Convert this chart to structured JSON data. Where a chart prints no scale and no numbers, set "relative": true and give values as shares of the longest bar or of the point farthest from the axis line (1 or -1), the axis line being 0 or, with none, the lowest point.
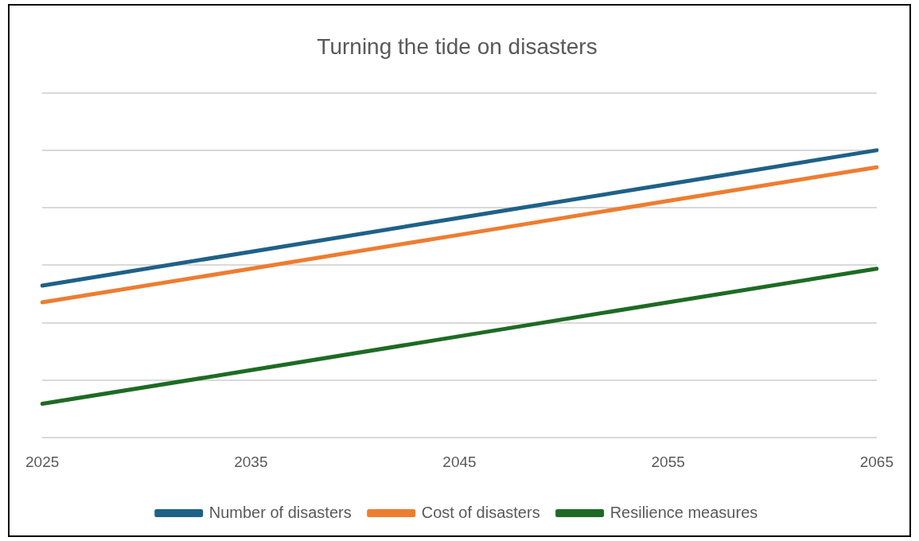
{
  "chart_data": {
    "type": "line",
    "title": "Turning the tide on disasters",
    "categories": [
      "2025",
      "2035",
      "2045",
      "2055",
      "2065"
    ],
    "relative": true,
    "grid": "y",
    "legend": "bottom",
    "marker": "none",
    "line_style": "solid",
    "series": [
      {
        "name": "Number of disasters",
        "color": "#1f6187",
        "values": [
          0.529,
          0.647,
          0.765,
          0.882,
          1
        ]
      },
      {
        "name": "Cost of disasters",
        "color": "#ed7d31",
        "values": [
          0.471,
          0.588,
          0.706,
          0.824,
          0.941
        ]
      },
      {
        "name": "Resilience measures",
        "color": "#1e6b24",
        "values": [
          0.118,
          0.235,
          0.353,
          0.471,
          0.588
        ]
      }
    ]
  }
}
